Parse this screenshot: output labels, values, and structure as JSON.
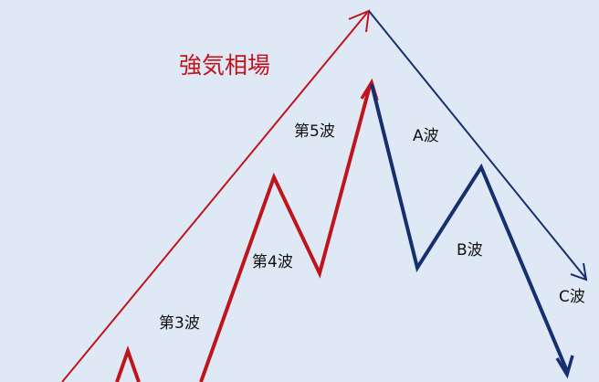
{
  "colors": {
    "background": "#dfe9f5",
    "bull": "#c0141c",
    "bear": "#16306f"
  },
  "labels": {
    "bull_market": "強気相場",
    "wave3": "第3波",
    "wave4": "第4波",
    "wave5": "第5波",
    "waveA": "A波",
    "waveB": "B波",
    "waveC": "C波"
  }
}
